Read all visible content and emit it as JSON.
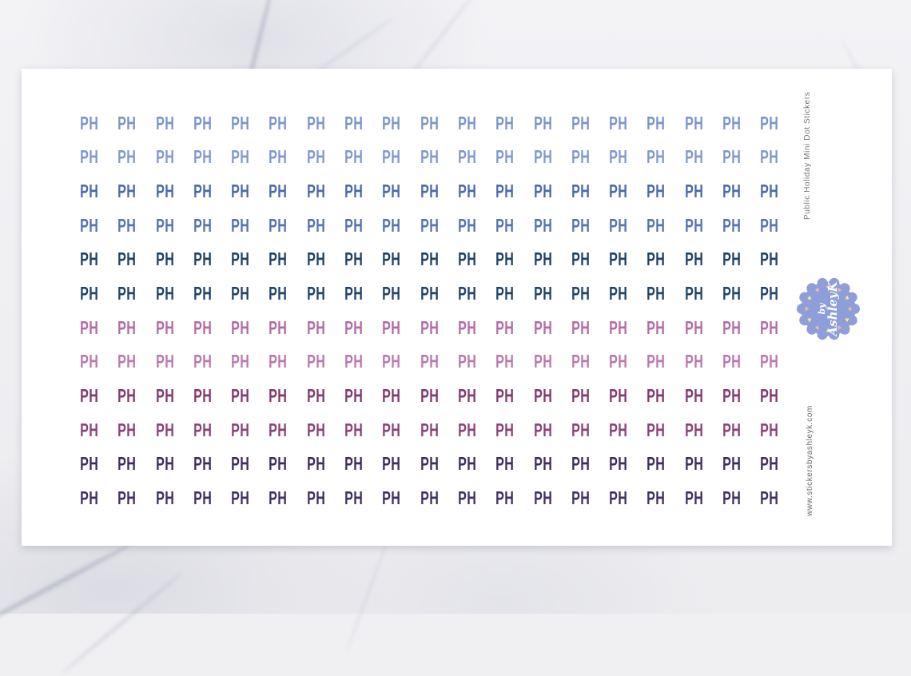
{
  "sheet": {
    "sticker_text": "PH",
    "rows": 12,
    "columns": 19,
    "row_colors": [
      "#7b95cb",
      "#8099cf",
      "#4a6bab",
      "#5474b1",
      "#1e4368",
      "#204569",
      "#b46ca6",
      "#bb79ad",
      "#84386f",
      "#8d4179",
      "#3f2c5e",
      "#413063"
    ]
  },
  "side": {
    "title": "Public Holiday Mini Dot Stickers",
    "website": "www.stickersbyashleyk.com"
  },
  "badge": {
    "line1": "by",
    "line2": "AshleyK",
    "circle_color": "#8d9ed8",
    "heart_colors": [
      "#f6e2a2",
      "#f2b9b6"
    ],
    "text_color": "#ffffff",
    "heart_icon": "♥"
  }
}
